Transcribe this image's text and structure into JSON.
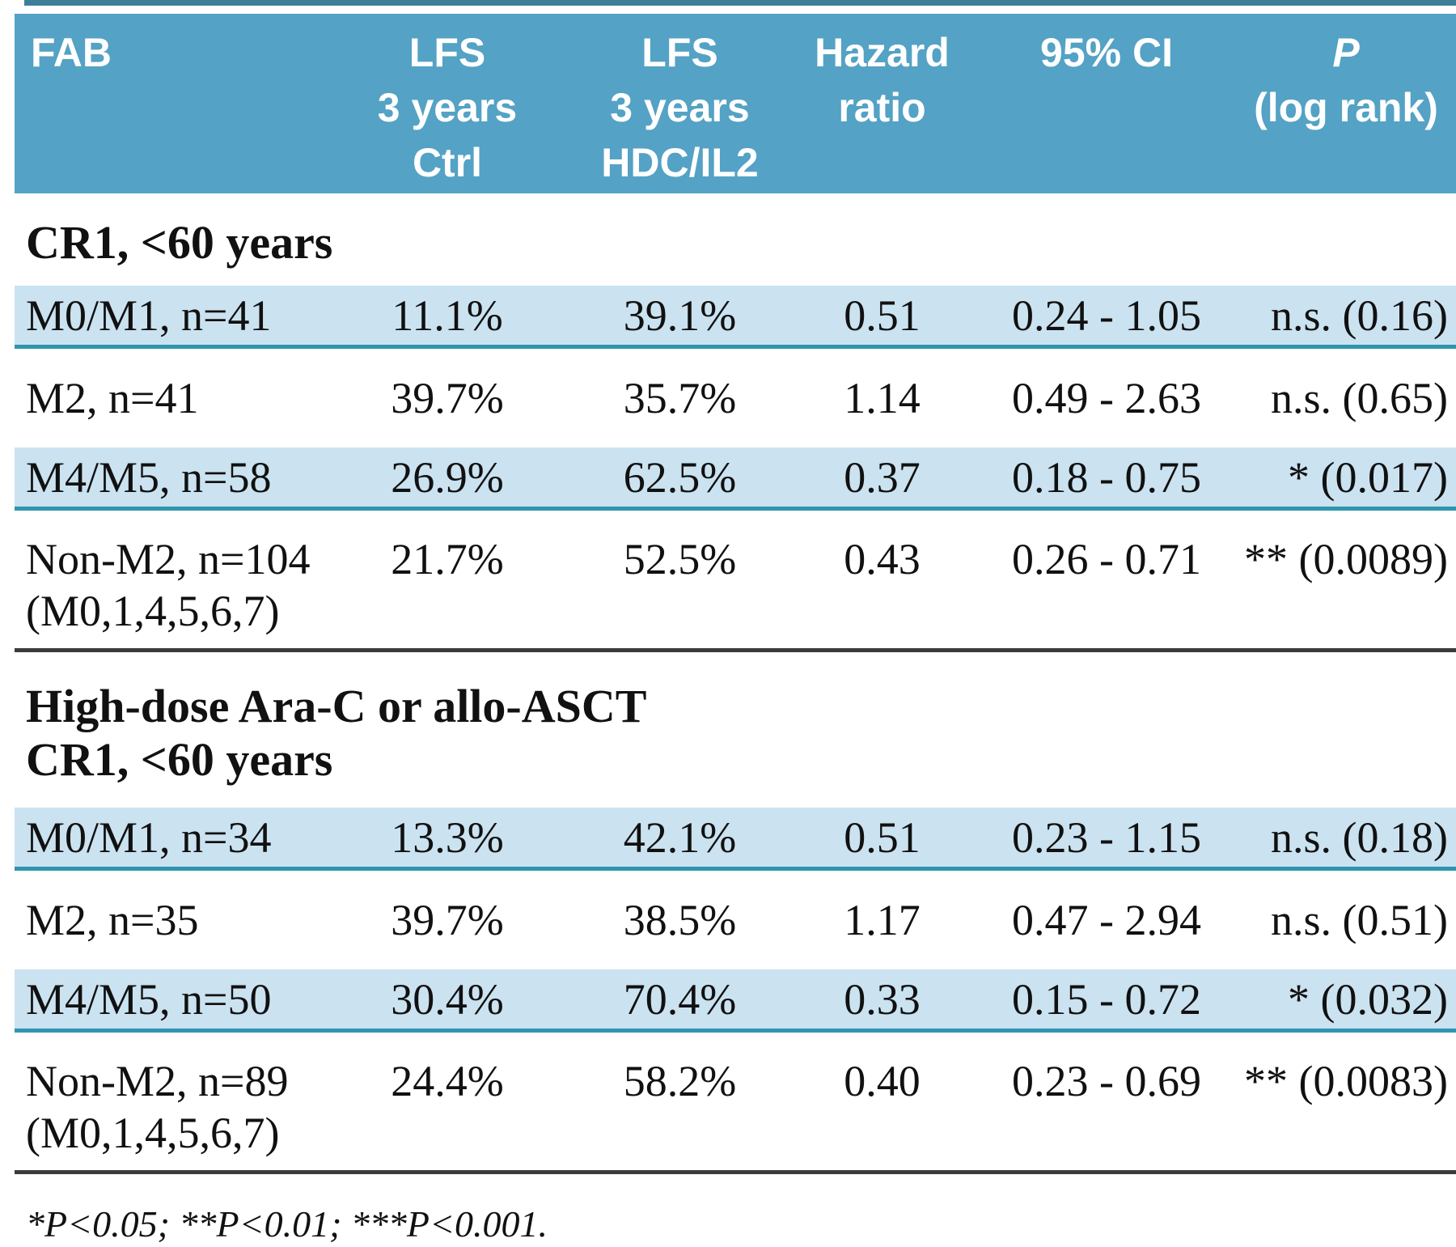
{
  "colors": {
    "header_bg": "#54a2c5",
    "row_shade": "#cbe2f0",
    "row_border": "#2e96ad",
    "rule_color": "#3b3b3b",
    "strip_color": "#3d7f9b",
    "header_text": "#ffffff",
    "text_color": "#111111"
  },
  "header": {
    "col1": {
      "l1": "FAB"
    },
    "col2": {
      "l1": "LFS",
      "l2": "3 years",
      "l3": "Ctrl"
    },
    "col3": {
      "l1": "LFS",
      "l2": "3 years",
      "l3": "HDC/IL2"
    },
    "col4": {
      "l1": "Hazard",
      "l2": "ratio"
    },
    "col5": {
      "l1": "95% CI"
    },
    "col6": {
      "l1": "P",
      "l2": "(log rank)"
    }
  },
  "sections": [
    {
      "title_lines": [
        "CR1, <60 years"
      ],
      "rows": [
        {
          "fab": [
            "M0/M1, n=41"
          ],
          "lfs_ctrl": "11.1%",
          "lfs_hdc": "39.1%",
          "hazard_ratio": "0.51",
          "ci": "0.24 - 1.05",
          "p": "n.s. (0.16)",
          "shaded": true
        },
        {
          "fab": [
            "M2, n=41"
          ],
          "lfs_ctrl": "39.7%",
          "lfs_hdc": "35.7%",
          "hazard_ratio": "1.14",
          "ci": "0.49 - 2.63",
          "p": "n.s. (0.65)",
          "shaded": false
        },
        {
          "fab": [
            "M4/M5, n=58"
          ],
          "lfs_ctrl": "26.9%",
          "lfs_hdc": "62.5%",
          "hazard_ratio": "0.37",
          "ci": "0.18 - 0.75",
          "p": "* (0.017)",
          "shaded": true
        },
        {
          "fab": [
            "Non-M2, n=104",
            "(M0,1,4,5,6,7)"
          ],
          "lfs_ctrl": "21.7%",
          "lfs_hdc": "52.5%",
          "hazard_ratio": "0.43",
          "ci": "0.26 - 0.71",
          "p": "** (0.0089)",
          "shaded": false
        }
      ]
    },
    {
      "title_lines": [
        "High-dose Ara-C or allo-ASCT",
        "CR1, <60 years"
      ],
      "rows": [
        {
          "fab": [
            "M0/M1, n=34"
          ],
          "lfs_ctrl": "13.3%",
          "lfs_hdc": "42.1%",
          "hazard_ratio": "0.51",
          "ci": "0.23 - 1.15",
          "p": "n.s. (0.18)",
          "shaded": true
        },
        {
          "fab": [
            "M2, n=35"
          ],
          "lfs_ctrl": "39.7%",
          "lfs_hdc": "38.5%",
          "hazard_ratio": "1.17",
          "ci": "0.47 - 2.94",
          "p": "n.s. (0.51)",
          "shaded": false
        },
        {
          "fab": [
            "M4/M5, n=50"
          ],
          "lfs_ctrl": "30.4%",
          "lfs_hdc": "70.4%",
          "hazard_ratio": "0.33",
          "ci": "0.15 - 0.72",
          "p": "* (0.032)",
          "shaded": true
        },
        {
          "fab": [
            "Non-M2, n=89",
            "(M0,1,4,5,6,7)"
          ],
          "lfs_ctrl": "24.4%",
          "lfs_hdc": "58.2%",
          "hazard_ratio": "0.40",
          "ci": "0.23 - 0.69",
          "p": "** (0.0083)",
          "shaded": false
        }
      ]
    }
  ],
  "footnote": "*P<0.05; **P<0.01; ***P<0.001.",
  "chart_data": {
    "type": "table",
    "title": "",
    "column_headers": [
      "FAB",
      "LFS 3 years Ctrl",
      "LFS 3 years HDC/IL2",
      "Hazard ratio",
      "95% CI",
      "P (log rank)"
    ],
    "groups": [
      {
        "group": "CR1, <60 years",
        "rows": [
          [
            "M0/M1, n=41",
            "11.1%",
            "39.1%",
            "0.51",
            "0.24 - 1.05",
            "n.s. (0.16)"
          ],
          [
            "M2, n=41",
            "39.7%",
            "35.7%",
            "1.14",
            "0.49 - 2.63",
            "n.s. (0.65)"
          ],
          [
            "M4/M5, n=58",
            "26.9%",
            "62.5%",
            "0.37",
            "0.18 - 0.75",
            "* (0.017)"
          ],
          [
            "Non-M2, n=104 (M0,1,4,5,6,7)",
            "21.7%",
            "52.5%",
            "0.43",
            "0.26 - 0.71",
            "** (0.0089)"
          ]
        ]
      },
      {
        "group": "High-dose Ara-C or allo-ASCT CR1, <60 years",
        "rows": [
          [
            "M0/M1, n=34",
            "13.3%",
            "42.1%",
            "0.51",
            "0.23 - 1.15",
            "n.s. (0.18)"
          ],
          [
            "M2, n=35",
            "39.7%",
            "38.5%",
            "1.17",
            "0.47 - 2.94",
            "n.s. (0.51)"
          ],
          [
            "M4/M5, n=50",
            "30.4%",
            "70.4%",
            "0.33",
            "0.15 - 0.72",
            "* (0.032)"
          ],
          [
            "Non-M2, n=89 (M0,1,4,5,6,7)",
            "24.4%",
            "58.2%",
            "0.40",
            "0.23 - 0.69",
            "** (0.0083)"
          ]
        ]
      }
    ],
    "footnote": "*P<0.05; **P<0.01; ***P<0.001."
  }
}
